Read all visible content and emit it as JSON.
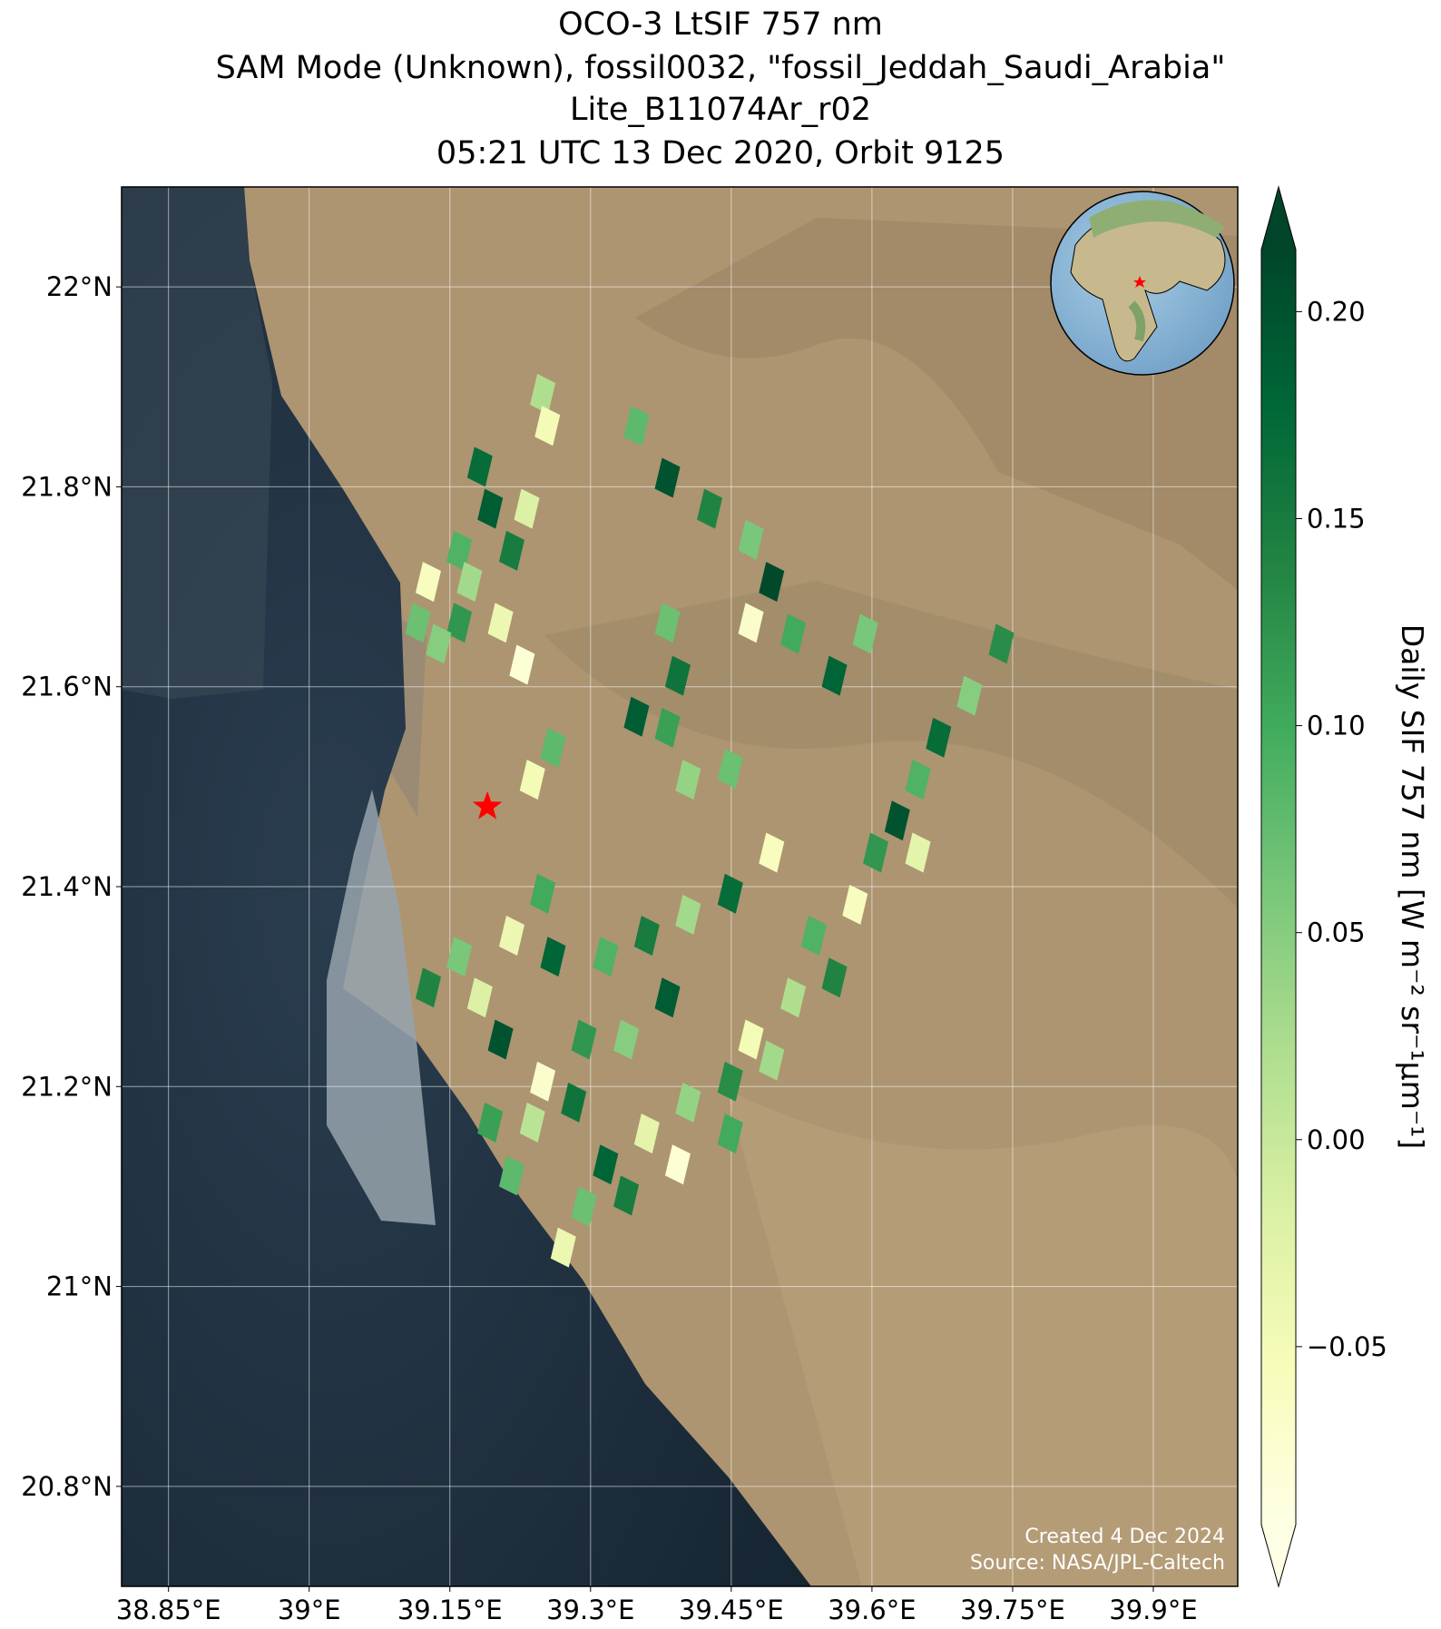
{
  "chart_data": {
    "type": "map",
    "title": [
      "OCO-3 LtSIF 757 nm",
      "SAM Mode (Unknown), fossil0032, \"fossil_Jeddah_Saudi_Arabia\"",
      "Lite_B11074Ar_r02",
      "05:21 UTC 13 Dec 2020, Orbit 9125"
    ],
    "xlim": [
      38.8,
      39.99
    ],
    "ylim": [
      20.7,
      22.1
    ],
    "xticks": [
      {
        "value": 38.85,
        "label": "38.85°E"
      },
      {
        "value": 39,
        "label": "39°E"
      },
      {
        "value": 39.15,
        "label": "39.15°E"
      },
      {
        "value": 39.3,
        "label": "39.3°E"
      },
      {
        "value": 39.45,
        "label": "39.45°E"
      },
      {
        "value": 39.6,
        "label": "39.6°E"
      },
      {
        "value": 39.75,
        "label": "39.75°E"
      },
      {
        "value": 39.9,
        "label": "39.9°E"
      }
    ],
    "yticks": [
      {
        "value": 20.8,
        "label": "20.8°N"
      },
      {
        "value": 21,
        "label": "21°N"
      },
      {
        "value": 21.2,
        "label": "21.2°N"
      },
      {
        "value": 21.4,
        "label": "21.4°N"
      },
      {
        "value": 21.6,
        "label": "21.6°N"
      },
      {
        "value": 21.8,
        "label": "21.8°N"
      },
      {
        "value": 22,
        "label": "22°N"
      }
    ],
    "grid": true,
    "colorbar": {
      "label": "Daily SIF 757 nm [W m⁻² sr⁻¹μm⁻¹]",
      "lim": [
        -0.093,
        0.215
      ],
      "ticks": [
        {
          "value": -0.05,
          "label": "−0.05"
        },
        {
          "value": 0,
          "label": "0.00"
        },
        {
          "value": 0.05,
          "label": "0.05"
        },
        {
          "value": 0.1,
          "label": "0.10"
        },
        {
          "value": 0.15,
          "label": "0.15"
        },
        {
          "value": 0.2,
          "label": "0.20"
        }
      ],
      "colors": [
        "#ffffe5",
        "#f7fcb9",
        "#d9f0a3",
        "#addd8e",
        "#78c679",
        "#41ab5d",
        "#238443",
        "#006837",
        "#004529"
      ],
      "extend": "both"
    },
    "soundings": {
      "lon": [
        39.249,
        39.254,
        39.182,
        39.193,
        39.232,
        39.16,
        39.216,
        39.127,
        39.171,
        39.116,
        39.16,
        39.204,
        39.138,
        39.227,
        39.349,
        39.382,
        39.427,
        39.471,
        39.493,
        39.471,
        39.516,
        39.56,
        39.382,
        39.393,
        39.349,
        39.382,
        39.404,
        39.593,
        39.738,
        39.704,
        39.671,
        39.649,
        39.627,
        39.604,
        39.649,
        39.26,
        39.238,
        39.449,
        39.493,
        39.249,
        39.216,
        39.16,
        39.127,
        39.182,
        39.26,
        39.316,
        39.36,
        39.404,
        39.449,
        39.204,
        39.249,
        39.293,
        39.338,
        39.382,
        39.193,
        39.238,
        39.282,
        39.216,
        39.582,
        39.538,
        39.516,
        39.471,
        39.449,
        39.404,
        39.36,
        39.316,
        39.293,
        39.271,
        39.338,
        39.393,
        39.449,
        39.493,
        39.56
      ],
      "lat": [
        21.893,
        21.861,
        21.82,
        21.778,
        21.778,
        21.736,
        21.736,
        21.705,
        21.705,
        21.664,
        21.664,
        21.664,
        21.643,
        21.622,
        21.861,
        21.809,
        21.778,
        21.747,
        21.705,
        21.664,
        21.653,
        21.611,
        21.664,
        21.611,
        21.57,
        21.559,
        21.507,
        21.653,
        21.643,
        21.591,
        21.549,
        21.507,
        21.466,
        21.434,
        21.434,
        21.539,
        21.507,
        21.518,
        21.434,
        21.393,
        21.351,
        21.33,
        21.299,
        21.289,
        21.33,
        21.33,
        21.351,
        21.372,
        21.393,
        21.247,
        21.205,
        21.247,
        21.247,
        21.289,
        21.164,
        21.164,
        21.184,
        21.111,
        21.382,
        21.351,
        21.289,
        21.247,
        21.205,
        21.184,
        21.153,
        21.122,
        21.08,
        21.039,
        21.091,
        21.122,
        21.153,
        21.226,
        21.309
      ],
      "sif": [
        0.02,
        -0.05,
        0.17,
        0.19,
        -0.02,
        0.09,
        0.15,
        -0.06,
        0.03,
        0.07,
        0.12,
        -0.04,
        0.05,
        -0.08,
        0.08,
        0.2,
        0.14,
        0.06,
        0.21,
        -0.07,
        0.1,
        0.18,
        0.07,
        0.16,
        0.19,
        0.11,
        0.04,
        0.06,
        0.13,
        0.05,
        0.17,
        0.09,
        0.2,
        0.12,
        -0.03,
        0.08,
        -0.05,
        0.07,
        -0.06,
        0.1,
        -0.04,
        0.06,
        0.14,
        -0.02,
        0.18,
        0.09,
        0.15,
        0.03,
        0.17,
        0.2,
        -0.07,
        0.12,
        0.05,
        0.19,
        0.11,
        0.01,
        0.16,
        0.08,
        -0.06,
        0.09,
        0.02,
        -0.05,
        0.13,
        0.04,
        -0.03,
        0.18,
        0.07,
        -0.04,
        0.15,
        -0.08,
        0.1,
        0.03,
        0.14
      ]
    },
    "target": {
      "lon": 39.19,
      "lat": 21.48,
      "color": "#ff0000"
    },
    "footnotes": [
      "Created 4 Dec 2024",
      "Source: NASA/JPL-Caltech"
    ]
  }
}
